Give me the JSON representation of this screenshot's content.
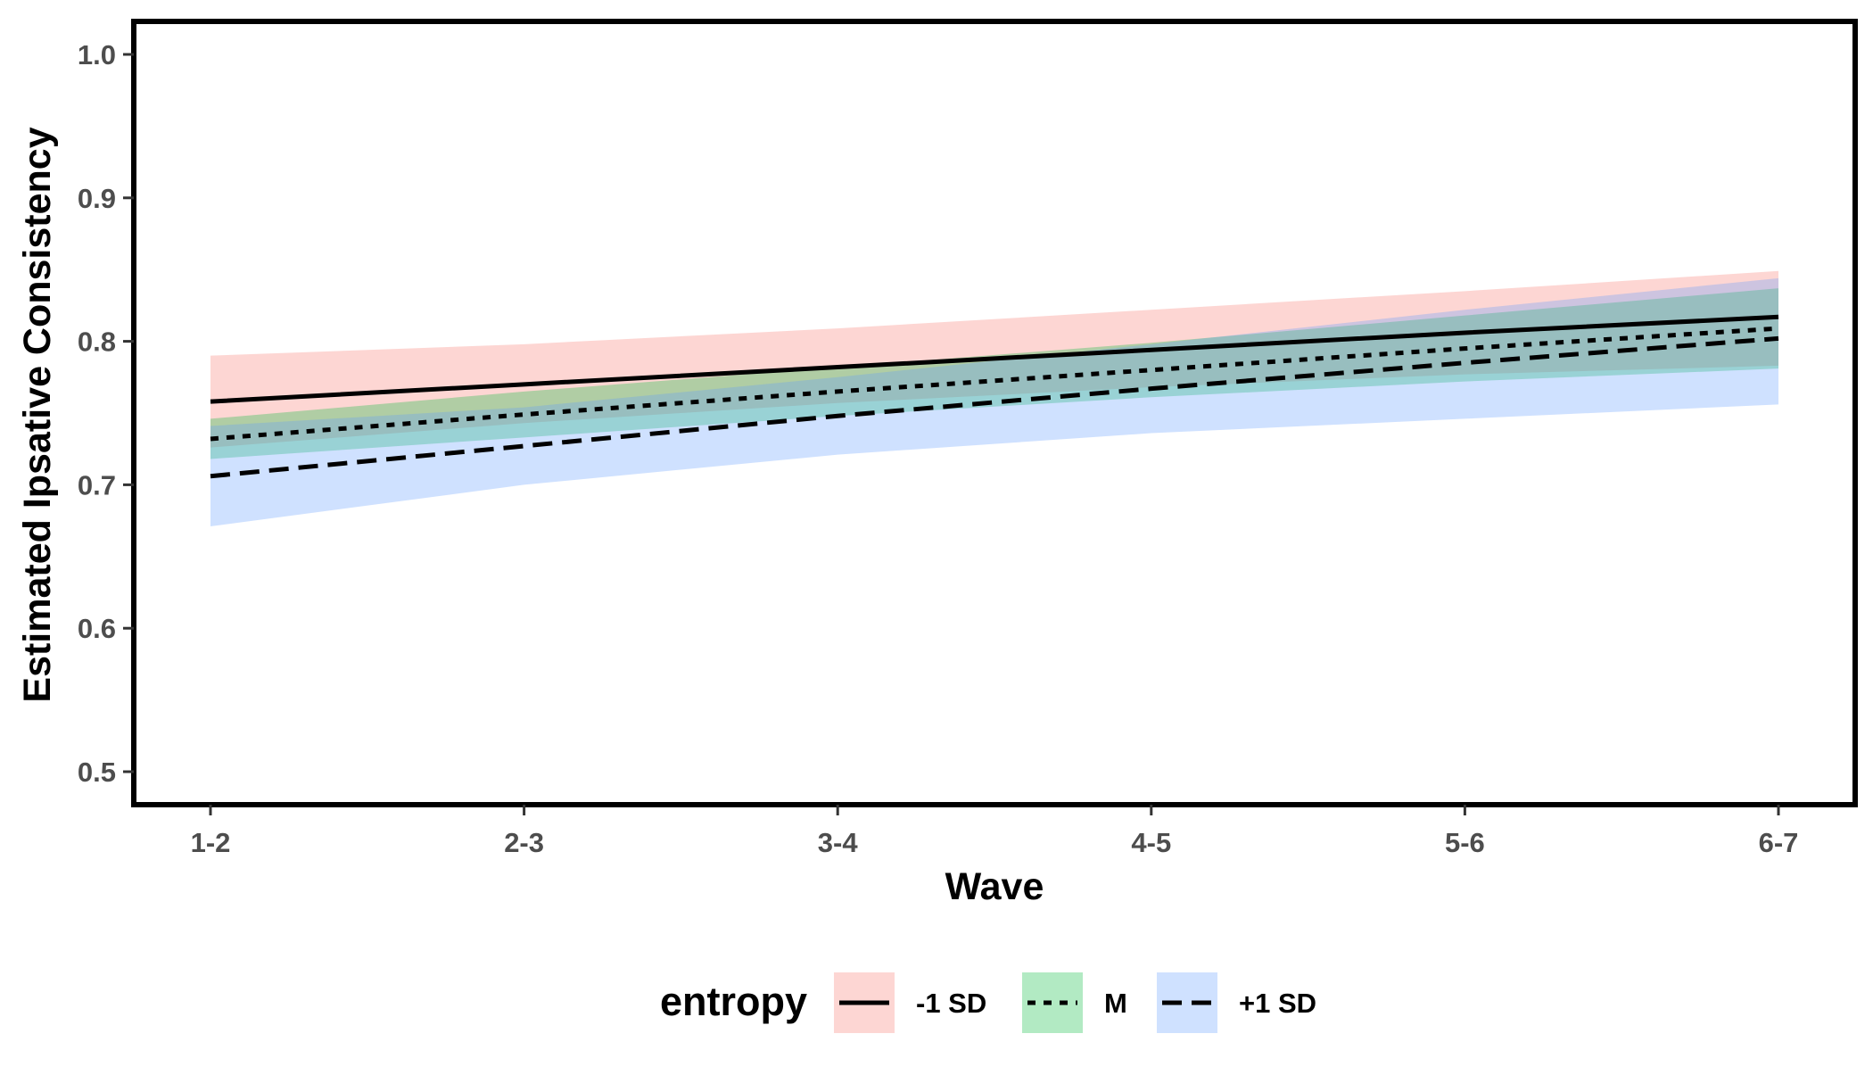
{
  "chart_data": {
    "type": "line",
    "xlabel": "Wave",
    "ylabel": "Estimated Ipsative Consistency",
    "x_categories": [
      "1-2",
      "2-3",
      "3-4",
      "4-5",
      "5-6",
      "6-7"
    ],
    "ylim": [
      0.477,
      1.023
    ],
    "y_ticks": [
      0.5,
      0.6,
      0.7,
      0.8,
      0.9,
      1.0
    ],
    "y_tick_labels": [
      "0.5",
      "0.6",
      "0.7",
      "0.8",
      "0.9",
      "1.0"
    ],
    "grid": false,
    "legend": {
      "title": "entropy",
      "position": "bottom"
    },
    "series": [
      {
        "name": "-1 SD",
        "line_style": "solid",
        "band_color": "#F8766D",
        "values": [
          0.758,
          0.77,
          0.782,
          0.794,
          0.806,
          0.817
        ],
        "lower": [
          0.726,
          0.743,
          0.757,
          0.768,
          0.777,
          0.783
        ],
        "upper": [
          0.79,
          0.798,
          0.809,
          0.822,
          0.835,
          0.849
        ]
      },
      {
        "name": "M",
        "line_style": "dotted",
        "band_color": "#00BA38",
        "values": [
          0.732,
          0.749,
          0.765,
          0.78,
          0.795,
          0.809
        ],
        "lower": [
          0.718,
          0.733,
          0.748,
          0.761,
          0.772,
          0.781
        ],
        "upper": [
          0.746,
          0.765,
          0.782,
          0.799,
          0.818,
          0.837
        ]
      },
      {
        "name": "+1 SD",
        "line_style": "dashed",
        "band_color": "#619CFF",
        "values": [
          0.706,
          0.727,
          0.748,
          0.767,
          0.785,
          0.802
        ],
        "lower": [
          0.671,
          0.7,
          0.721,
          0.736,
          0.746,
          0.756
        ],
        "upper": [
          0.741,
          0.754,
          0.775,
          0.798,
          0.822,
          0.844
        ]
      }
    ]
  }
}
